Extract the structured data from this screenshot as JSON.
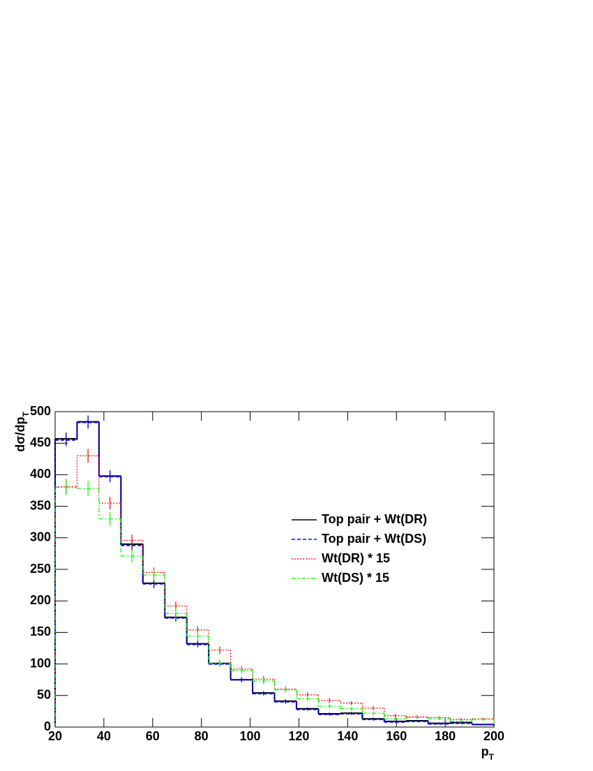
{
  "chart_data": {
    "type": "histogram",
    "xlabel": {
      "main": "p",
      "sub": "T"
    },
    "ylabel": {
      "main": "dσ/dp",
      "sub": "T"
    },
    "bins": [
      20,
      29,
      38,
      47,
      56,
      65,
      74,
      83,
      92,
      101,
      110,
      119,
      128,
      137,
      146,
      155,
      164,
      173,
      182,
      191,
      200
    ],
    "xlim": [
      20,
      200
    ],
    "xticks": [
      20,
      40,
      60,
      80,
      100,
      120,
      140,
      160,
      180,
      200
    ],
    "ylim": [
      0,
      500
    ],
    "yticks": [
      0,
      50,
      100,
      150,
      200,
      250,
      300,
      350,
      400,
      450,
      500
    ],
    "legend": "right",
    "series": [
      {
        "name": "Top pair + Wt(DR)",
        "color": "#000000",
        "dash": "none",
        "values": [
          457,
          484,
          398,
          290,
          228,
          174,
          132,
          101,
          75,
          54,
          41,
          29,
          21,
          22,
          13,
          9,
          10,
          6,
          7,
          4
        ],
        "errors": [
          10,
          10,
          9,
          8,
          7,
          6,
          5,
          4,
          4,
          3,
          3,
          2,
          2,
          2,
          2,
          1,
          1,
          1,
          1,
          1
        ]
      },
      {
        "name": "Top pair + Wt(DS)",
        "color": "#0000ff",
        "dash": "5,3",
        "values": [
          455,
          483,
          397,
          288,
          227,
          173,
          131,
          100,
          75,
          53,
          40,
          28,
          20,
          21,
          12,
          8,
          9,
          5,
          6,
          4
        ],
        "errors": [
          10,
          10,
          9,
          8,
          7,
          6,
          5,
          4,
          4,
          3,
          3,
          2,
          2,
          2,
          2,
          1,
          1,
          1,
          1,
          1
        ]
      },
      {
        "name": "Wt(DR) * 15",
        "color": "#ff0000",
        "dash": "2,2",
        "values": [
          381,
          430,
          355,
          296,
          245,
          192,
          154,
          122,
          92,
          76,
          60,
          51,
          42,
          38,
          30,
          18,
          16,
          15,
          12,
          13
        ],
        "errors": [
          12,
          11,
          10,
          9,
          8,
          7,
          6,
          6,
          5,
          5,
          4,
          4,
          4,
          3,
          3,
          3,
          3,
          2,
          2,
          2
        ]
      },
      {
        "name": "Wt(DS) * 15",
        "color": "#00ff00",
        "dash": "6,3,2,3",
        "values": [
          380,
          378,
          330,
          271,
          241,
          180,
          144,
          101,
          90,
          73,
          59,
          45,
          33,
          29,
          22,
          13,
          15,
          13,
          9,
          12
        ],
        "errors": [
          12,
          12,
          11,
          10,
          9,
          8,
          7,
          6,
          5,
          5,
          4,
          4,
          3,
          3,
          3,
          2,
          2,
          2,
          2,
          2
        ]
      }
    ]
  }
}
